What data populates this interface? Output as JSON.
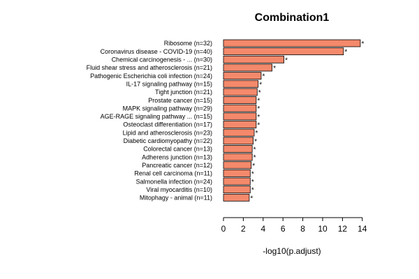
{
  "chart_data": {
    "type": "bar",
    "orientation": "horizontal",
    "title": "Combination1",
    "xlabel": "-log10(p.adjust)",
    "ylabel": "",
    "xlim": [
      0,
      14
    ],
    "xticks": [
      0,
      2,
      4,
      6,
      8,
      10,
      12,
      14
    ],
    "bar_color": "#F4896B",
    "bar_edge_color": "#000000",
    "significance_marker": "*",
    "categories": [
      "Ribosome (n=32)",
      "Coronavirus disease - COVID-19 (n=40)",
      "Chemical carcinogenesis - ... (n=30)",
      "Fluid shear stress and atherosclerosis (n=21)",
      "Pathogenic Escherichia coli infection (n=24)",
      "IL-17 signaling pathway (n=15)",
      "Tight junction (n=21)",
      "Prostate cancer (n=15)",
      "MAPK signaling pathway (n=29)",
      "AGE-RAGE signaling pathway ... (n=15)",
      "Osteoclast differentiation (n=17)",
      "Lipid and atherosclerosis (n=23)",
      "Diabetic cardiomyopathy (n=22)",
      "Colorectal cancer (n=13)",
      "Adherens junction (n=13)",
      "Pancreatic cancer (n=12)",
      "Renal cell carcinoma (n=11)",
      "Salmonella infection (n=24)",
      "Viral myocarditis (n=10)",
      "Mitophagy - animal (n=11)"
    ],
    "values": [
      13.8,
      12.1,
      6.1,
      4.9,
      3.8,
      3.5,
      3.4,
      3.3,
      3.3,
      3.3,
      3.3,
      3.1,
      3.0,
      2.9,
      2.9,
      2.8,
      2.7,
      2.7,
      2.7,
      2.6
    ]
  }
}
